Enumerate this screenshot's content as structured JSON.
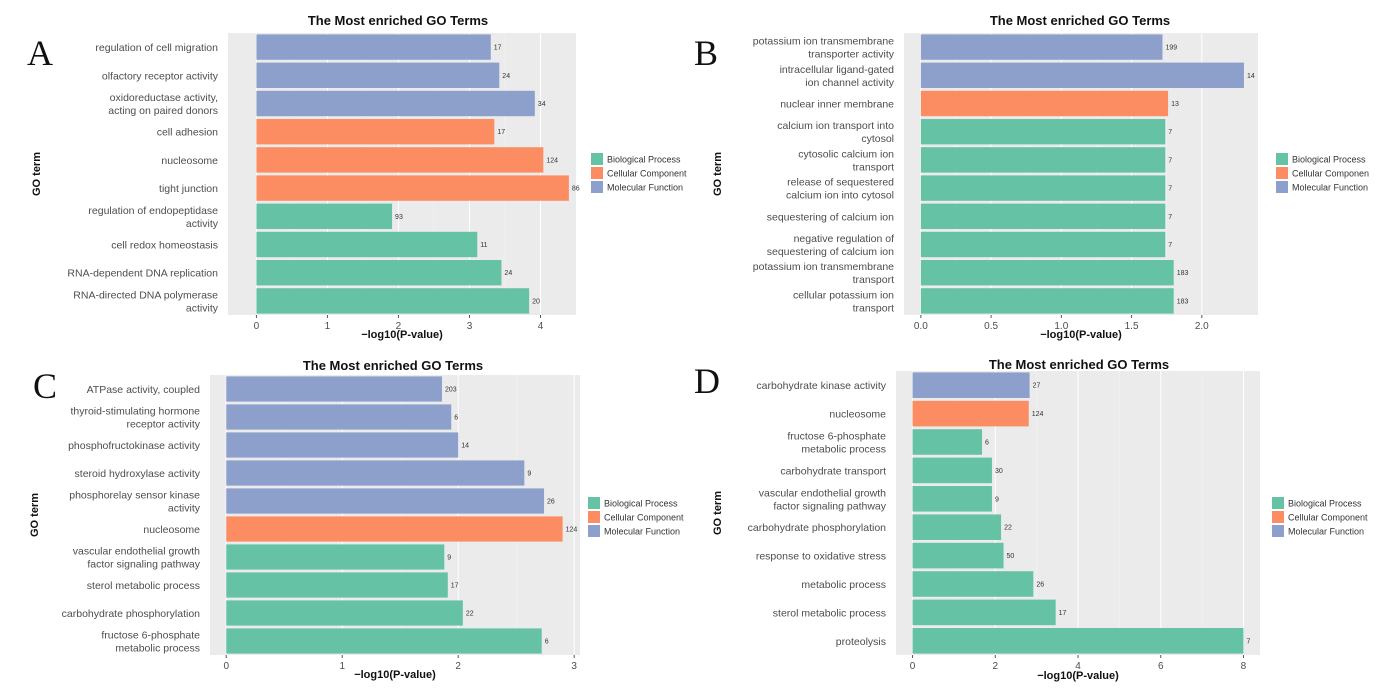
{
  "legend_colors": {
    "Biological Process": "#66c2a5",
    "Cellular Component": "#fc8d62",
    "Molecular Function": "#8da0cb"
  },
  "chart_data": [
    {
      "panel": "A",
      "type": "bar",
      "orientation": "horizontal",
      "title": "The Most enriched GO Terms",
      "xlabel": "-log10(P-value)",
      "ylabel": "GO term",
      "xlim": [
        -0.4,
        4.5
      ],
      "xticks": [
        0,
        1,
        2,
        3,
        4
      ],
      "legend": [
        "Biological Process",
        "Cellular Component",
        "Molecular Function"
      ],
      "legend_position": "right",
      "bars": [
        {
          "label": [
            "regulation of cell migration"
          ],
          "value": 3.3,
          "count": "17",
          "category": "Molecular Function"
        },
        {
          "label": [
            "olfactory receptor activity"
          ],
          "value": 3.42,
          "count": "24",
          "category": "Molecular Function"
        },
        {
          "label": [
            "oxidoreductase activity,",
            "acting on paired donors"
          ],
          "value": 3.92,
          "count": "34",
          "category": "Molecular Function"
        },
        {
          "label": [
            "cell adhesion"
          ],
          "value": 3.35,
          "count": "17",
          "category": "Cellular Component"
        },
        {
          "label": [
            "nucleosome"
          ],
          "value": 4.04,
          "count": "124",
          "category": "Cellular Component"
        },
        {
          "label": [
            "tight junction"
          ],
          "value": 4.4,
          "count": "86",
          "category": "Cellular Component"
        },
        {
          "label": [
            "regulation of endopeptidase",
            "activity"
          ],
          "value": 1.91,
          "count": "93",
          "category": "Biological Process"
        },
        {
          "label": [
            "cell redox homeostasis"
          ],
          "value": 3.11,
          "count": "11",
          "category": "Biological Process"
        },
        {
          "label": [
            "RNA-dependent DNA replication"
          ],
          "value": 3.45,
          "count": "24",
          "category": "Biological Process"
        },
        {
          "label": [
            "RNA-directed DNA polymerase",
            "activity"
          ],
          "value": 3.84,
          "count": "20",
          "category": "Biological Process"
        }
      ]
    },
    {
      "panel": "B",
      "type": "bar",
      "orientation": "horizontal",
      "title": "The Most enriched GO Terms",
      "xlabel": "-log10(P-value)",
      "ylabel": "GO term",
      "xlim": [
        -0.12,
        2.4
      ],
      "xticks": [
        0.0,
        0.5,
        1.0,
        1.5,
        2.0
      ],
      "legend": [
        "Biological Process",
        "Cellular Componen",
        "Molecular Function"
      ],
      "legend_position": "right",
      "bars": [
        {
          "label": [
            "potassium ion transmembrane",
            "transporter activity"
          ],
          "value": 1.72,
          "count": "199",
          "category": "Molecular Function"
        },
        {
          "label": [
            "intracellular ligand-gated",
            "ion channel activity"
          ],
          "value": 2.3,
          "count": "14",
          "category": "Molecular Function"
        },
        {
          "label": [
            "nuclear inner membrane"
          ],
          "value": 1.76,
          "count": "13",
          "category": "Cellular Component"
        },
        {
          "label": [
            "calcium ion transport into",
            "cytosol"
          ],
          "value": 1.74,
          "count": "7",
          "category": "Biological Process"
        },
        {
          "label": [
            "cytosolic calcium ion",
            "transport"
          ],
          "value": 1.74,
          "count": "7",
          "category": "Biological Process"
        },
        {
          "label": [
            "release of sequestered",
            "calcium ion into cytosol"
          ],
          "value": 1.74,
          "count": "7",
          "category": "Biological Process"
        },
        {
          "label": [
            "sequestering of calcium ion"
          ],
          "value": 1.74,
          "count": "7",
          "category": "Biological Process"
        },
        {
          "label": [
            "negative regulation of",
            "sequestering of calcium ion"
          ],
          "value": 1.74,
          "count": "7",
          "category": "Biological Process"
        },
        {
          "label": [
            "potassium ion transmembrane",
            "transport"
          ],
          "value": 1.8,
          "count": "183",
          "category": "Biological Process"
        },
        {
          "label": [
            "cellular potassium ion",
            "transport"
          ],
          "value": 1.8,
          "count": "183",
          "category": "Biological Process"
        }
      ]
    },
    {
      "panel": "C",
      "type": "bar",
      "orientation": "horizontal",
      "title": "The Most enriched GO Terms",
      "xlabel": "-log10(P-value)",
      "ylabel": "GO term",
      "xlim": [
        -0.14,
        3.05
      ],
      "xticks": [
        0,
        1,
        2,
        3
      ],
      "legend": [
        "Biological Process",
        "Cellular Component",
        "Molecular Function"
      ],
      "legend_position": "right",
      "bars": [
        {
          "label": [
            "ATPase activity, coupled"
          ],
          "value": 1.86,
          "count": "203",
          "category": "Molecular Function"
        },
        {
          "label": [
            "thyroid-stimulating hormone",
            "receptor activity"
          ],
          "value": 1.94,
          "count": "6",
          "category": "Molecular Function"
        },
        {
          "label": [
            "phosphofructokinase activity"
          ],
          "value": 2.0,
          "count": "14",
          "category": "Molecular Function"
        },
        {
          "label": [
            "steroid hydroxylase activity"
          ],
          "value": 2.57,
          "count": "9",
          "category": "Molecular Function"
        },
        {
          "label": [
            "phosphorelay sensor kinase",
            "activity"
          ],
          "value": 2.74,
          "count": "26",
          "category": "Molecular Function"
        },
        {
          "label": [
            "nucleosome"
          ],
          "value": 2.9,
          "count": "124",
          "category": "Cellular Component"
        },
        {
          "label": [
            "vascular endothelial growth",
            "factor signaling pathway"
          ],
          "value": 1.88,
          "count": "9",
          "category": "Biological Process"
        },
        {
          "label": [
            "sterol metabolic process"
          ],
          "value": 1.91,
          "count": "17",
          "category": "Biological Process"
        },
        {
          "label": [
            "carbohydrate phosphorylation"
          ],
          "value": 2.04,
          "count": "22",
          "category": "Biological Process"
        },
        {
          "label": [
            "fructose 6-phosphate",
            "metabolic process"
          ],
          "value": 2.72,
          "count": "6",
          "category": "Biological Process"
        }
      ]
    },
    {
      "panel": "D",
      "type": "bar",
      "orientation": "horizontal",
      "title": "The Most enriched GO Terms",
      "xlabel": "-log10(P-value)",
      "ylabel": "GO term",
      "xlim": [
        -0.4,
        8.4
      ],
      "xticks": [
        0,
        2,
        4,
        6,
        8
      ],
      "legend": [
        "Biological Process",
        "Cellular Component",
        "Molecular Function"
      ],
      "legend_position": "right",
      "bars": [
        {
          "label": [
            "carbohydrate kinase activity"
          ],
          "value": 2.83,
          "count": "27",
          "category": "Molecular Function"
        },
        {
          "label": [
            "nucleosome"
          ],
          "value": 2.81,
          "count": "124",
          "category": "Cellular Component"
        },
        {
          "label": [
            "fructose 6-phosphate",
            "metabolic process"
          ],
          "value": 1.68,
          "count": "6",
          "category": "Biological Process"
        },
        {
          "label": [
            "carbohydrate transport"
          ],
          "value": 1.92,
          "count": "30",
          "category": "Biological Process"
        },
        {
          "label": [
            "vascular endothelial growth",
            "factor signaling pathway"
          ],
          "value": 1.92,
          "count": "9",
          "category": "Biological Process"
        },
        {
          "label": [
            "carbohydrate phosphorylation"
          ],
          "value": 2.14,
          "count": "22",
          "category": "Biological Process"
        },
        {
          "label": [
            "response to oxidative stress"
          ],
          "value": 2.2,
          "count": "50",
          "category": "Biological Process"
        },
        {
          "label": [
            "metabolic process"
          ],
          "value": 2.92,
          "count": "26",
          "category": "Biological Process"
        },
        {
          "label": [
            "sterol metabolic process"
          ],
          "value": 3.46,
          "count": "17",
          "category": "Biological Process"
        },
        {
          "label": [
            "proteolysis"
          ],
          "value": 8.0,
          "count": "7",
          "category": "Biological Process"
        }
      ]
    }
  ]
}
